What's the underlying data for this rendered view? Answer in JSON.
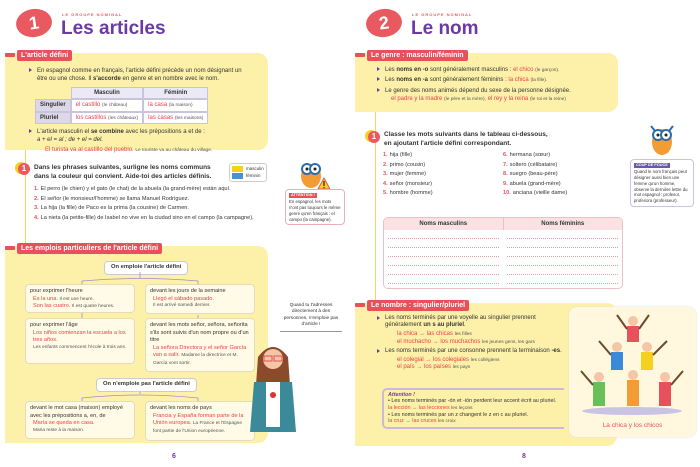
{
  "left": {
    "chapter_number": "1",
    "kicker": "LE GROUPE NOMINAL",
    "title": "Les articles",
    "page_number": "6",
    "defini": {
      "tag": "L'article défini",
      "p1_a": "En espagnol comme en français, l'article défini précède un nom désignant un être ou une chose. Il ",
      "p1_b": "s'accorde",
      "p1_c": " en genre et en nombre avec le nom.",
      "table": {
        "headers": [
          "Masculin",
          "Féminin"
        ],
        "rows": [
          {
            "label": "Singulier",
            "m_es": "el castillo",
            "m_fr": "(le château)",
            "f_es": "la casa",
            "f_fr": "(la maison)"
          },
          {
            "label": "Pluriel",
            "m_es": "los castillos",
            "m_fr": "(les châteaux)",
            "f_es": "las casas",
            "f_fr": "(les maisons)"
          }
        ]
      },
      "p2_a": "L'article masculin el ",
      "p2_b": "se combine",
      "p2_c": " avec les prépositions a et de :",
      "p2_formula": "a + el = al ; de + el = del.",
      "example_es": "El turista va al castillo del pueblo.",
      "example_fr": "Le touriste va au château du village."
    },
    "exercise": {
      "number": "1",
      "instruction_1": "Dans les phrases suivantes, surligne les noms communs",
      "instruction_2": "dans la couleur qui convient. Aide-toi des articles définis.",
      "legend": [
        {
          "label": "masculin",
          "color": "#f5d020"
        },
        {
          "label": "féminin",
          "color": "#4a90d9"
        }
      ],
      "items": [
        {
          "n": "1.",
          "text": "El perro (le chien) y el gato (le chat) de la abuela (la grand-mère) están aquí."
        },
        {
          "n": "2.",
          "text": "El señor (le monsieur/l'homme) se llama Manuel Rodríguez."
        },
        {
          "n": "3.",
          "text": "La hija (la fille) de Paco es la prima (la cousine) de Carmen."
        },
        {
          "n": "4.",
          "text": "La nieta (la petite-fille) de Isabel no vive en la ciudad sino en el campo (la campagne)."
        }
      ]
    },
    "attention": {
      "title": "ATTENTION !",
      "text": "En espagnol, les mots n'ont pas toujours le même genre qu'en français : el campo (la campagne)."
    },
    "emplois": {
      "tag": "Les emplois particuliers de l'article défini",
      "on_emploie": "On emploie l'article défini",
      "heure": {
        "title": "pour exprimer l'heure",
        "ex1_es": "Es la una.",
        "ex1_fr": "Il est une heure.",
        "ex2_es": "Son las cuatro.",
        "ex2_fr": "Il est quatre heures."
      },
      "age": {
        "title": "pour exprimer l'âge",
        "ex_es": "Los niños comienzan la escuela a los tres años.",
        "ex_fr": "Les enfants commencent l'école à trois ans."
      },
      "jours": {
        "title": "devant les jours de la semaine",
        "ex_es": "Llegó el sábado pasado.",
        "ex_fr": "Il est arrivé samedi dernier."
      },
      "senor": {
        "title": "devant les mots señor, señora, señorita s'ils sont suivis d'un nom propre ou d'un titre",
        "ex_es": "La señora Directora y el señor García van a salir.",
        "ex_fr": "Madame la directrice et M. García vont sortir."
      },
      "on_emploie_pas": "On n'emploie pas l'article défini",
      "casa": {
        "title": "devant le mot casa (maison) employé avec les prépositions a, en, de",
        "ex_es": "María se queda en casa.",
        "ex_fr": "Maria reste à la maison."
      },
      "pays": {
        "title": "devant les noms de pays",
        "ex_es": "Francia y España forman parte de la Unión europea.",
        "ex_fr": "La France et l'Espagne font partie de l'Union européenne."
      }
    },
    "speech": "Quand tu t'adresses directement à des personnes, n'emploie pas d'article !"
  },
  "right": {
    "chapter_number": "2",
    "kicker": "LE GROUPE NOMINAL",
    "title": "Le nom",
    "page_number": "8",
    "genre": {
      "tag": "Le genre : masculin/féminin",
      "b1_a": "Les ",
      "b1_b": "noms en -o",
      "b1_c": " sont généralement masculins : ",
      "b1_es": "el chico",
      "b1_fr": "(le garçon).",
      "b2_a": "Les ",
      "b2_b": "noms en -a",
      "b2_c": " sont généralement féminins : ",
      "b2_es": "la chica",
      "b2_fr": "(la fille).",
      "b3": "Le genre des noms animés dépend du sexe de la personne désignée.",
      "b3_es1": "el padre y la madre",
      "b3_fr1": "(le père et la mère),",
      "b3_es2": "el rey y la reina",
      "b3_fr2": "(le roi et la reine)"
    },
    "exercise": {
      "number": "1",
      "instruction_1": "Classe les mots suivants dans le tableau ci-dessous,",
      "instruction_2": "en ajoutant l'article défini correspondant.",
      "items": [
        {
          "n": "1.",
          "text": "hija (fille)"
        },
        {
          "n": "2.",
          "text": "primo (cousin)"
        },
        {
          "n": "3.",
          "text": "mujer (femme)"
        },
        {
          "n": "4.",
          "text": "señor (monsieur)"
        },
        {
          "n": "5.",
          "text": "hombre (homme)"
        },
        {
          "n": "6.",
          "text": "hermana (sœur)"
        },
        {
          "n": "7.",
          "text": "soltero (célibataire)"
        },
        {
          "n": "8.",
          "text": "suegro (beau-père)"
        },
        {
          "n": "9.",
          "text": "abuela (grand-mère)"
        },
        {
          "n": "10.",
          "text": "anciana (vieille dame)"
        }
      ],
      "table_headers": [
        "Noms masculins",
        "Noms féminins"
      ]
    },
    "coup_de_pouce": {
      "title": "COUP DE POUCE",
      "text": "Quand le nom français peut désigner aussi bien une femme qu'un homme, observe la dernière lettre du mot espagnol : profesor, profesora (professeur)."
    },
    "nombre": {
      "tag": "Le nombre : singulier/pluriel",
      "b1_a": "Les noms terminés par une voyelle au singulier prennent généralement ",
      "b1_b": "un s au pluriel",
      "b1_c": ".",
      "ex1_es": "la chica → las chicas",
      "ex1_fr": "les filles",
      "ex2_es": "el muchacho → los muchachos",
      "ex2_fr": "les jeunes gens, les gars",
      "b2_a": "Les noms terminés par une consonne prennent la terminaison ",
      "b2_b": "-es",
      "b2_c": ".",
      "ex3_es": "el colegial → los colegiales",
      "ex3_fr": "les collégiens",
      "ex4_es": "el país → los países",
      "ex4_fr": "les pays",
      "attention_title": "Attention !",
      "att1": "Les noms terminés par -ón et -ión perdent leur accent écrit au pluriel.",
      "att1_es": "la lección → las lecciones",
      "att1_fr": "les leçons",
      "att2": "Les noms terminés par un z changent le z en c au pluriel.",
      "att2_es": "la cruz → las cruces",
      "att2_fr": "les croix"
    },
    "image_caption": "La chica y los chicos"
  }
}
